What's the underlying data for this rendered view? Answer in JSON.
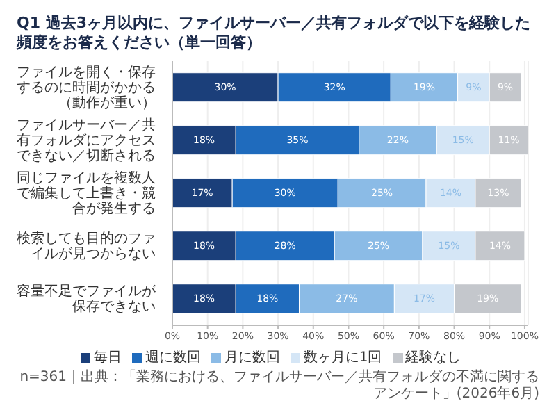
{
  "chart_data": {
    "type": "bar",
    "orientation": "horizontal",
    "stacked": true,
    "title": "Q1  過去3ヶ月以内に、ファイルサーバー／共有フォルダで以下を経験した頻度をお答えください（単一回答）",
    "categories": [
      "ファイルを開く・保存するのに時間がかかる（動作が重い）",
      "ファイルサーバー／共有フォルダにアクセスできない／切断される",
      "同じファイルを複数人で編集して上書き・競合が発生する",
      "検索しても目的のファイルが見つからない",
      "容量不足でファイルが保存できない"
    ],
    "series": [
      {
        "name": "毎日",
        "color": "#1b3f7a",
        "values": [
          30,
          18,
          17,
          18,
          18
        ],
        "value_labels": [
          "30%",
          "18%",
          "17%",
          "18%",
          "18%"
        ]
      },
      {
        "name": "週に数回",
        "color": "#1f6bbd",
        "values": [
          32,
          35,
          30,
          28,
          18
        ],
        "value_labels": [
          "32%",
          "35%",
          "30%",
          "28%",
          "18%"
        ]
      },
      {
        "name": "月に数回",
        "color": "#8bbbe6",
        "values": [
          19,
          22,
          25,
          25,
          27
        ],
        "value_labels": [
          "19%",
          "22%",
          "25%",
          "25%",
          "27%"
        ]
      },
      {
        "name": "数ヶ月に1回",
        "color": "#d5e6f6",
        "values": [
          9,
          15,
          14,
          15,
          17
        ],
        "value_labels": [
          "9%",
          "15%",
          "14%",
          "15%",
          "17%"
        ]
      },
      {
        "name": "経験なし",
        "color": "#c4c7cc",
        "values": [
          9,
          11,
          13,
          14,
          19
        ],
        "value_labels": [
          "9%",
          "11%",
          "13%",
          "14%",
          "19%"
        ]
      }
    ],
    "xlim": [
      0,
      101
    ],
    "xticks": [
      {
        "value": 0,
        "label": "0%"
      },
      {
        "value": 10,
        "label": "10%"
      },
      {
        "value": 20,
        "label": "20%"
      },
      {
        "value": 30,
        "label": "30%"
      },
      {
        "value": 40,
        "label": "40%"
      },
      {
        "value": 50,
        "label": "50%"
      },
      {
        "value": 60,
        "label": "60%"
      },
      {
        "value": 70,
        "label": "70%"
      },
      {
        "value": 80,
        "label": "80%"
      },
      {
        "value": 90,
        "label": "90%"
      },
      {
        "value": 100,
        "label": "100%"
      }
    ],
    "grid": "x",
    "legend": "bottom",
    "annotations": [
      "n=361｜出典：「業務における、ファイルサーバー／共有フォルダの不満に関するアンケート」(2026年6月)"
    ]
  }
}
